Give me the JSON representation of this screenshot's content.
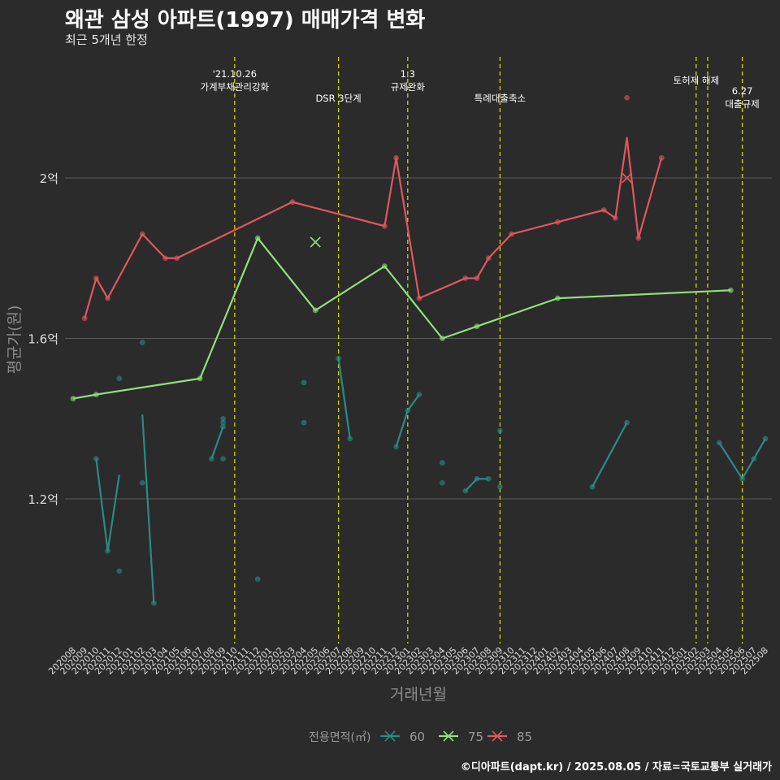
{
  "chart_data": {
    "type": "line",
    "title": "왜관 삼성 아파트(1997) 매매가격 변화",
    "subtitle": "최근 5개년 한정",
    "xlabel": "거래년월",
    "ylabel": "평균가(원)",
    "caption": "©디아파트(dapt.kr) / 2025.08.05 / 자료=국토교통부 실거래가",
    "legend_title": "전용면적(㎡)",
    "legend_position": "bottom",
    "grid": true,
    "ylim": [
      0.84,
      2.32
    ],
    "y_unit": "억",
    "y_ticks": [
      {
        "value": 1.2,
        "label": "1.2억"
      },
      {
        "value": 1.6,
        "label": "1.6억"
      },
      {
        "value": 2.0,
        "label": "2억"
      }
    ],
    "x_categories": [
      "202008",
      "202009",
      "202010",
      "202011",
      "202012",
      "202101",
      "202102",
      "202103",
      "202104",
      "202105",
      "202106",
      "202107",
      "202108",
      "202109",
      "202110",
      "202111",
      "202112",
      "202201",
      "202202",
      "202203",
      "202204",
      "202205",
      "202206",
      "202207",
      "202208",
      "202209",
      "202210",
      "202211",
      "202212",
      "202301",
      "202302",
      "202303",
      "202304",
      "202305",
      "202306",
      "202307",
      "202308",
      "202309",
      "202310",
      "202311",
      "202312",
      "202401",
      "202402",
      "202403",
      "202404",
      "202405",
      "202406",
      "202407",
      "202408",
      "202409",
      "202410",
      "202411",
      "202412",
      "202501",
      "202502",
      "202503",
      "202504",
      "202505",
      "202506",
      "202507",
      "202508"
    ],
    "events": [
      {
        "x": "202110",
        "label": "'21.10.26\n가계부채관리강화"
      },
      {
        "x": "202207",
        "label": "DSR 3단계"
      },
      {
        "x": "202301",
        "label": "1.3\n규제완화"
      },
      {
        "x": "202309",
        "label": "특례대출축소"
      },
      {
        "x": "202502",
        "label": "토허제 해제"
      },
      {
        "x": "202503",
        "label": ""
      },
      {
        "x": "202506",
        "label": "6.27\n대출규제"
      }
    ],
    "series": [
      {
        "name": "60",
        "color": "#2a8a86",
        "line": [
          {
            "x": "202010",
            "y": 1.3
          },
          {
            "x": "202011",
            "y": 1.07
          },
          {
            "x": "202012",
            "y": 1.26
          },
          {
            "x": "202101",
            "y": null
          },
          {
            "x": "202102",
            "y": 1.41
          },
          {
            "x": "202103",
            "y": 0.94
          },
          {
            "x": "202104",
            "y": null
          },
          {
            "x": "202108",
            "y": 1.3
          },
          {
            "x": "202109",
            "y": 1.38
          },
          {
            "x": "202110",
            "y": null
          },
          {
            "x": "202207",
            "y": 1.55
          },
          {
            "x": "202208",
            "y": 1.35
          },
          {
            "x": "202209",
            "y": null
          },
          {
            "x": "202212",
            "y": 1.33
          },
          {
            "x": "202301",
            "y": 1.42
          },
          {
            "x": "202302",
            "y": 1.46
          },
          {
            "x": "202303",
            "y": null
          },
          {
            "x": "202306",
            "y": 1.22
          },
          {
            "x": "202307",
            "y": 1.25
          },
          {
            "x": "202308",
            "y": 1.25
          },
          {
            "x": "202309",
            "y": null
          },
          {
            "x": "202405",
            "y": 1.23
          },
          {
            "x": "202408",
            "y": 1.39
          },
          {
            "x": "202409",
            "y": null
          },
          {
            "x": "202504",
            "y": 1.34
          },
          {
            "x": "202506",
            "y": 1.25
          },
          {
            "x": "202507",
            "y": 1.3
          },
          {
            "x": "202508",
            "y": 1.35
          }
        ],
        "points": [
          {
            "x": "202010",
            "y": 1.3
          },
          {
            "x": "202011",
            "y": 1.07
          },
          {
            "x": "202012",
            "y": 1.5
          },
          {
            "x": "202012",
            "y": 1.02
          },
          {
            "x": "202102",
            "y": 1.59
          },
          {
            "x": "202102",
            "y": 1.24
          },
          {
            "x": "202103",
            "y": 0.94
          },
          {
            "x": "202108",
            "y": 1.3
          },
          {
            "x": "202109",
            "y": 1.3
          },
          {
            "x": "202109",
            "y": 1.38
          },
          {
            "x": "202109",
            "y": 1.4
          },
          {
            "x": "202109",
            "y": 1.39
          },
          {
            "x": "202112",
            "y": 1.0
          },
          {
            "x": "202204",
            "y": 1.49
          },
          {
            "x": "202204",
            "y": 1.39
          },
          {
            "x": "202207",
            "y": 1.55
          },
          {
            "x": "202208",
            "y": 1.35
          },
          {
            "x": "202212",
            "y": 1.33
          },
          {
            "x": "202301",
            "y": 1.42
          },
          {
            "x": "202302",
            "y": 1.46
          },
          {
            "x": "202304",
            "y": 1.29
          },
          {
            "x": "202304",
            "y": 1.24
          },
          {
            "x": "202306",
            "y": 1.22
          },
          {
            "x": "202307",
            "y": 1.25
          },
          {
            "x": "202308",
            "y": 1.25
          },
          {
            "x": "202309",
            "y": 1.37
          },
          {
            "x": "202309",
            "y": 1.23
          },
          {
            "x": "202405",
            "y": 1.23
          },
          {
            "x": "202408",
            "y": 1.39
          },
          {
            "x": "202504",
            "y": 1.34
          },
          {
            "x": "202506",
            "y": 1.25
          },
          {
            "x": "202507",
            "y": 1.3
          },
          {
            "x": "202508",
            "y": 1.35
          }
        ]
      },
      {
        "name": "75",
        "color": "#8fe07a",
        "line": [
          {
            "x": "202008",
            "y": 1.45
          },
          {
            "x": "202010",
            "y": 1.46
          },
          {
            "x": "202107",
            "y": 1.5
          },
          {
            "x": "202112",
            "y": 1.85
          },
          {
            "x": "202205",
            "y": 1.67
          },
          {
            "x": "202211",
            "y": 1.78
          },
          {
            "x": "202304",
            "y": 1.6
          },
          {
            "x": "202307",
            "y": 1.63
          },
          {
            "x": "202402",
            "y": 1.7
          },
          {
            "x": "202505",
            "y": 1.72
          }
        ],
        "points": [
          {
            "x": "202008",
            "y": 1.45
          },
          {
            "x": "202010",
            "y": 1.46
          },
          {
            "x": "202107",
            "y": 1.5
          },
          {
            "x": "202112",
            "y": 1.85
          },
          {
            "x": "202205",
            "y": 1.67
          },
          {
            "x": "202211",
            "y": 1.78
          },
          {
            "x": "202304",
            "y": 1.6
          },
          {
            "x": "202307",
            "y": 1.63
          },
          {
            "x": "202402",
            "y": 1.7
          },
          {
            "x": "202505",
            "y": 1.72
          }
        ],
        "cross_points": [
          {
            "x": "202205",
            "y": 1.84
          }
        ]
      },
      {
        "name": "85",
        "color": "#e0575d",
        "line": [
          {
            "x": "202009",
            "y": 1.65
          },
          {
            "x": "202010",
            "y": 1.75
          },
          {
            "x": "202011",
            "y": 1.7
          },
          {
            "x": "202102",
            "y": 1.86
          },
          {
            "x": "202104",
            "y": 1.8
          },
          {
            "x": "202105",
            "y": 1.8
          },
          {
            "x": "202203",
            "y": 1.94
          },
          {
            "x": "202211",
            "y": 1.88
          },
          {
            "x": "202212",
            "y": 2.05
          },
          {
            "x": "202302",
            "y": 1.7
          },
          {
            "x": "202306",
            "y": 1.75
          },
          {
            "x": "202307",
            "y": 1.75
          },
          {
            "x": "202308",
            "y": 1.8
          },
          {
            "x": "202310",
            "y": 1.86
          },
          {
            "x": "202402",
            "y": 1.89
          },
          {
            "x": "202406",
            "y": 1.92
          },
          {
            "x": "202407",
            "y": 1.9
          },
          {
            "x": "202408",
            "y": 2.1
          },
          {
            "x": "202409",
            "y": 1.85
          },
          {
            "x": "202411",
            "y": 2.05
          }
        ],
        "points": [
          {
            "x": "202009",
            "y": 1.65
          },
          {
            "x": "202010",
            "y": 1.75
          },
          {
            "x": "202011",
            "y": 1.7
          },
          {
            "x": "202102",
            "y": 1.86
          },
          {
            "x": "202104",
            "y": 1.8
          },
          {
            "x": "202105",
            "y": 1.8
          },
          {
            "x": "202203",
            "y": 1.94
          },
          {
            "x": "202211",
            "y": 1.88
          },
          {
            "x": "202212",
            "y": 2.05
          },
          {
            "x": "202302",
            "y": 1.7
          },
          {
            "x": "202306",
            "y": 1.75
          },
          {
            "x": "202307",
            "y": 1.75
          },
          {
            "x": "202308",
            "y": 1.8
          },
          {
            "x": "202310",
            "y": 1.86
          },
          {
            "x": "202402",
            "y": 1.89
          },
          {
            "x": "202406",
            "y": 1.92
          },
          {
            "x": "202407",
            "y": 1.9
          },
          {
            "x": "202408",
            "y": 2.2
          },
          {
            "x": "202409",
            "y": 1.85
          },
          {
            "x": "202411",
            "y": 2.05
          }
        ],
        "cross_points": [
          {
            "x": "202408",
            "y": 2.0
          }
        ]
      }
    ]
  }
}
